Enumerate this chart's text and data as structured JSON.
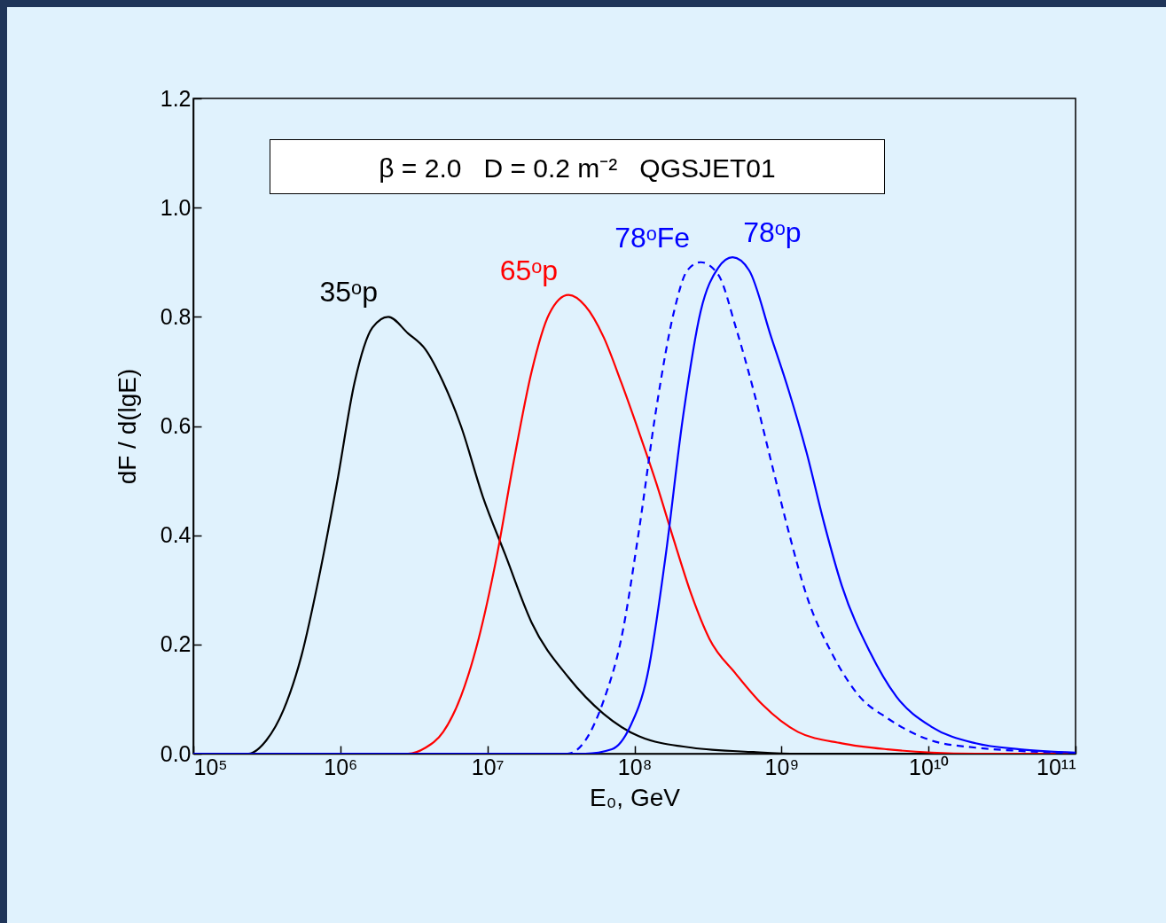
{
  "chart_data": {
    "type": "line",
    "xlabel": "E₀, GeV",
    "ylabel": "dF / d(lgE)",
    "annotations": [
      "β = 2.0   D = 0.2 m⁻²   QGSJET01"
    ],
    "log": "x",
    "xlim": [
      100000.0,
      100000000000.0
    ],
    "xticks": [
      {
        "value": 100000.0,
        "label": "10⁵"
      },
      {
        "value": 1000000.0,
        "label": "10⁶"
      },
      {
        "value": 10000000.0,
        "label": "10⁷"
      },
      {
        "value": 100000000.0,
        "label": "10⁸"
      },
      {
        "value": 1000000000.0,
        "label": "10⁹"
      },
      {
        "value": 10000000000.0,
        "label": "10¹⁰"
      },
      {
        "value": 100000000000.0,
        "label": "10¹¹"
      }
    ],
    "ylim": [
      0,
      1.2
    ],
    "yticks": [
      {
        "value": 0,
        "label": "0.0"
      },
      0.2,
      0.4,
      0.6,
      0.8,
      {
        "value": 1,
        "label": "1.0"
      },
      1.2
    ],
    "grid": false,
    "marker": "none",
    "series": [
      {
        "name": "35ᵒp",
        "color": "#000000",
        "line_style": "solid",
        "x": [
          100000.0,
          237000.0,
          313000.0,
          412000.0,
          545000.0,
          718000.0,
          948000.0,
          1250000.0,
          1650000.0,
          2120000.0,
          2880000.0,
          3800000.0,
          5010000.0,
          6610000.0,
          9330000.0,
          13200000.0,
          20000000.0,
          35500000.0,
          61700000.0,
          107000000.0,
          245000000.0,
          646000000.0,
          1290000000.0,
          100000000000.0
        ],
        "values": [
          0,
          0,
          0.024,
          0.081,
          0.18,
          0.325,
          0.495,
          0.68,
          0.78,
          0.8,
          0.77,
          0.74,
          0.68,
          0.6,
          0.47,
          0.365,
          0.24,
          0.14,
          0.073,
          0.032,
          0.011,
          0.003,
          0,
          0
        ]
      },
      {
        "name": "65ᵒp",
        "color": "#ff0000",
        "line_style": "solid",
        "x": [
          100000.0,
          2880000.0,
          3800000.0,
          5010000.0,
          6610000.0,
          8710000.0,
          11500000.0,
          15100000.0,
          20000000.0,
          26300000.0,
          35600000.0,
          46300000.0,
          61700000.0,
          81300000.0,
          107000000.0,
          141000000.0,
          186000000.0,
          245000000.0,
          324000000.0,
          490000000.0,
          741000000.0,
          1290000000.0,
          2570000000.0,
          5250000000.0,
          10500000000.0,
          20900000000.0,
          100000000000.0
        ],
        "values": [
          0,
          0,
          0.011,
          0.04,
          0.105,
          0.21,
          0.357,
          0.535,
          0.7,
          0.805,
          0.84,
          0.82,
          0.763,
          0.68,
          0.59,
          0.495,
          0.39,
          0.29,
          0.21,
          0.146,
          0.09,
          0.04,
          0.019,
          0.008,
          0.002,
          0,
          0
        ]
      },
      {
        "name": "78ᵒFe",
        "color": "#0000ff",
        "line_style": "dashed",
        "x": [
          100000.0,
          35100000.0,
          46300000.0,
          61700000.0,
          81300000.0,
          107000000.0,
          141000000.0,
          186000000.0,
          229000000.0,
          282000000.0,
          372000000.0,
          490000000.0,
          646000000.0,
          851000000.0,
          1120000000.0,
          1480000000.0,
          2240000000.0,
          3390000000.0,
          5250000000.0,
          10500000000.0,
          20900000000.0,
          41700000000.0,
          100000000000.0
        ],
        "values": [
          0,
          0,
          0.024,
          0.097,
          0.21,
          0.406,
          0.633,
          0.81,
          0.885,
          0.9,
          0.877,
          0.78,
          0.665,
          0.535,
          0.406,
          0.29,
          0.18,
          0.105,
          0.065,
          0.024,
          0.011,
          0.005,
          0.001
        ]
      },
      {
        "name": "78ᵒp",
        "color": "#0000ff",
        "line_style": "solid",
        "x": [
          100000.0,
          46300000.0,
          70300000.0,
          93300000.0,
          123000000.0,
          162000000.0,
          214000000.0,
          282000000.0,
          372000000.0,
          465000000.0,
          603000000.0,
          851000000.0,
          1120000000.0,
          1480000000.0,
          1950000000.0,
          2570000000.0,
          3980000000.0,
          6030000000.0,
          10500000000.0,
          20900000000.0,
          41700000000.0,
          100000000000.0
        ],
        "values": [
          0,
          0,
          0.008,
          0.049,
          0.146,
          0.357,
          0.617,
          0.81,
          0.89,
          0.909,
          0.885,
          0.763,
          0.665,
          0.552,
          0.422,
          0.308,
          0.187,
          0.105,
          0.049,
          0.019,
          0.008,
          0.002
        ]
      }
    ]
  }
}
